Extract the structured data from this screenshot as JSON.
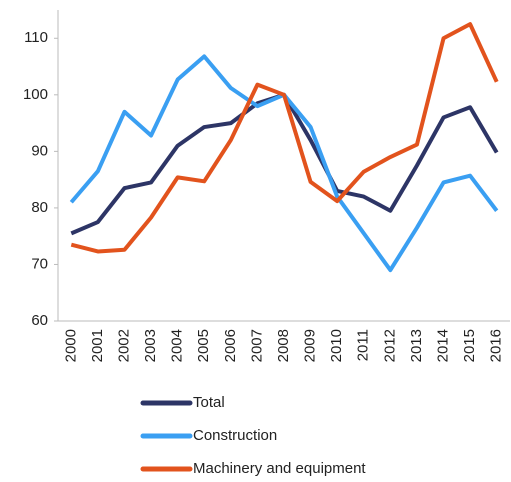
{
  "chart_data": {
    "type": "line",
    "categories": [
      "2000",
      "2001",
      "2002",
      "2003",
      "2004",
      "2005",
      "2006",
      "2007",
      "2008",
      "2009",
      "2010",
      "2011",
      "2012",
      "2013",
      "2014",
      "2015",
      "2016"
    ],
    "series": [
      {
        "name": "Total",
        "color": "#2d3566",
        "values": [
          75.5,
          77.5,
          83.5,
          84.5,
          91,
          94.3,
          95,
          98.5,
          100,
          92,
          83,
          82,
          79.5,
          87.5,
          96,
          97.8,
          89.8
        ]
      },
      {
        "name": "Construction",
        "color": "#3a9ff2",
        "values": [
          81,
          86.5,
          97,
          92.8,
          102.7,
          106.8,
          101.2,
          98,
          100,
          94.3,
          82,
          75.5,
          69,
          76.5,
          84.5,
          85.7,
          79.5
        ]
      },
      {
        "name": "Machinery and equipment",
        "color": "#e2531d",
        "values": [
          73.5,
          72.3,
          72.6,
          78.3,
          85.4,
          84.7,
          92,
          101.8,
          100,
          84.6,
          81.2,
          86.4,
          89,
          91.2,
          110,
          112.5,
          102.3
        ]
      }
    ],
    "ylim": [
      60,
      115
    ],
    "yticks": [
      60,
      70,
      80,
      90,
      100,
      110
    ],
    "grid": false
  }
}
